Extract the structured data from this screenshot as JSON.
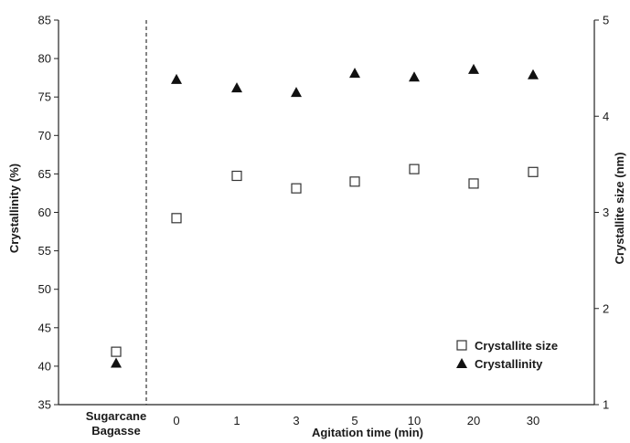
{
  "chart_data": {
    "type": "scatter",
    "xlabel": "Agitation time (min)",
    "ylabel_left": "Crystallinity (%)",
    "ylabel_right": "Crystallite size (nm)",
    "categories": [
      "Sugarcane Bagasse",
      "0",
      "1",
      "3",
      "5",
      "10",
      "20",
      "30"
    ],
    "category_lines": [
      [
        "Sugarcane",
        "Bagasse"
      ],
      [
        "0"
      ],
      [
        "1"
      ],
      [
        "3"
      ],
      [
        "5"
      ],
      [
        "10"
      ],
      [
        "20"
      ],
      [
        "30"
      ]
    ],
    "ylim_left": [
      35,
      85
    ],
    "yticks_left": [
      35,
      40,
      45,
      50,
      55,
      60,
      65,
      70,
      75,
      80,
      85
    ],
    "ylim_right": [
      1,
      5
    ],
    "yticks_right": [
      1,
      2,
      3,
      4,
      5
    ],
    "separator_after_category": 0,
    "legend_position": "bottom-right",
    "series": [
      {
        "name": "Crystallite size",
        "axis": "right",
        "marker": "open-square",
        "values": [
          1.55,
          2.94,
          3.38,
          3.25,
          3.32,
          3.45,
          3.3,
          3.42
        ]
      },
      {
        "name": "Crystallinity",
        "axis": "left",
        "marker": "filled-triangle",
        "values": [
          40.4,
          77.3,
          76.2,
          75.6,
          78.1,
          77.6,
          78.6,
          77.9
        ]
      }
    ]
  }
}
